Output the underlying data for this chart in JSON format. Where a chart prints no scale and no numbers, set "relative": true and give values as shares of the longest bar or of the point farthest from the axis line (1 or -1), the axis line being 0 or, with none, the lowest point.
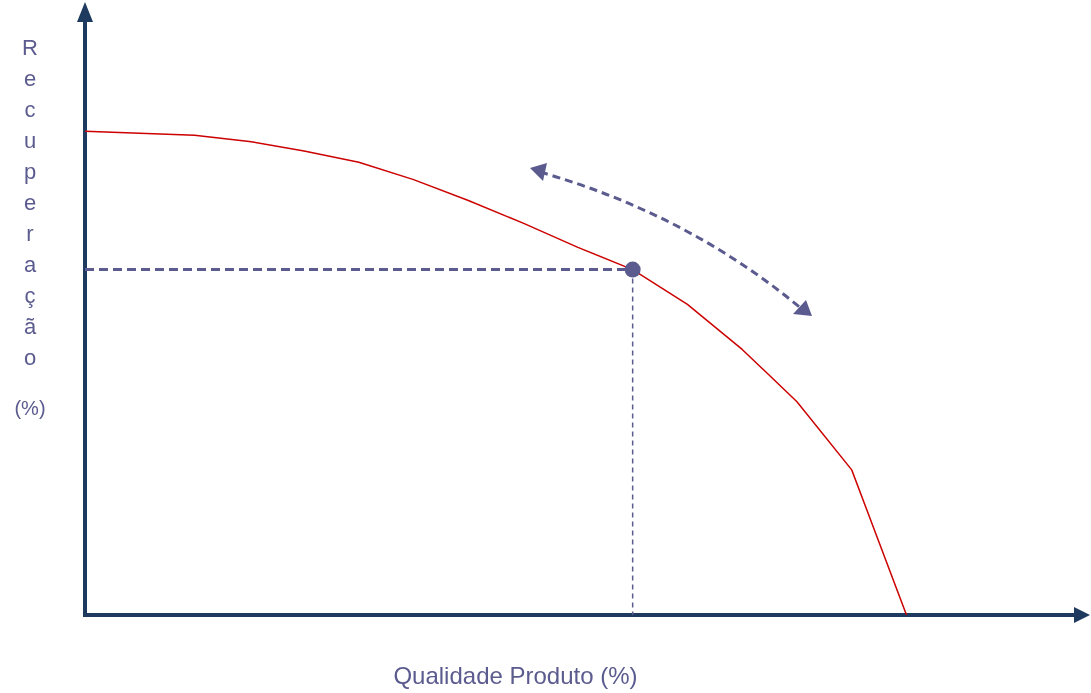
{
  "chart_data": {
    "type": "line",
    "relative": true,
    "xlabel": "Qualidade Produto (%)",
    "ylabel": "Recuperação (%)",
    "categories": [
      null,
      null,
      null,
      null,
      null,
      null,
      null,
      null,
      null,
      null,
      null,
      null,
      null,
      null,
      null,
      null
    ],
    "series": [
      {
        "type": "line",
        "color": "#cc0000",
        "values": [
          1.0,
          0.996,
          0.992,
          0.979,
          0.959,
          0.936,
          0.9,
          0.857,
          0.81,
          0.76,
          0.714,
          0.642,
          0.549,
          0.441,
          0.3,
          0
        ]
      }
    ],
    "ref_lines": [
      {
        "axis": "y",
        "value": 0.714,
        "color": "#5b5b8f",
        "line_style": "dashed"
      }
    ],
    "grid": false,
    "legend": false,
    "tick_labels": false,
    "marker": "none"
  }
}
